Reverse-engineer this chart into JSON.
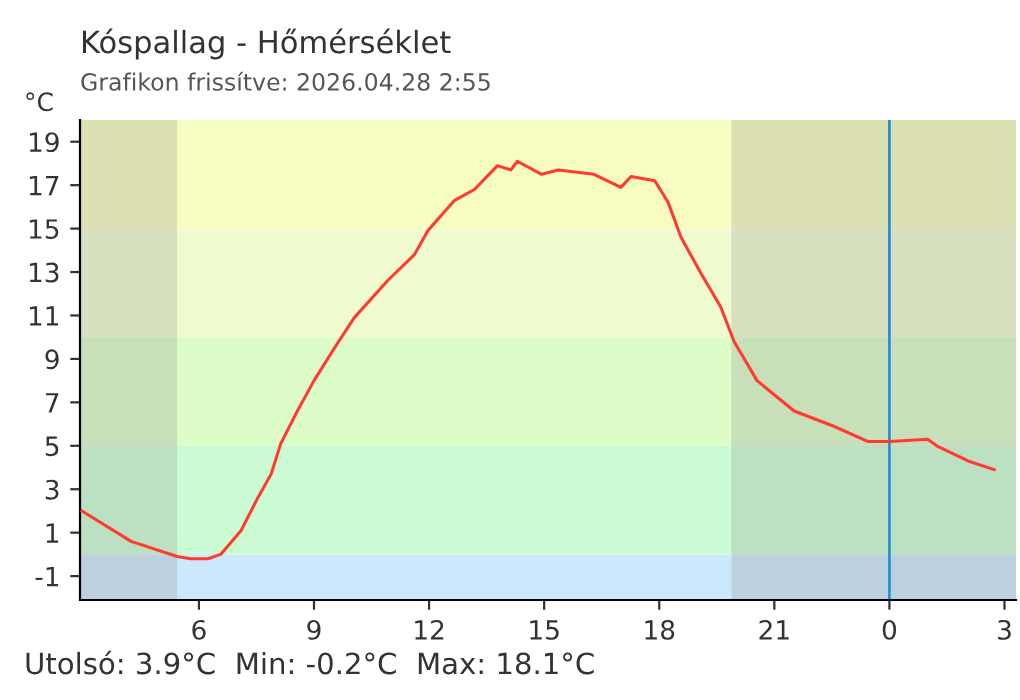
{
  "chart_data": {
    "type": "line",
    "title": "Kóspallag - Hőmérséklet",
    "subtitle": "Grafikon frissítve: 2026.04.28 2:55",
    "ylabel": "°C",
    "annotations": [
      "Utolsó: 3.9°C  Min: -0.2°C  Max: 18.1°C"
    ],
    "x": [
      "2026-04-27T02:57",
      "2026-04-27T04:14",
      "2026-04-27T05:26",
      "2026-04-27T05:47",
      "2026-04-27T06:14",
      "2026-04-27T06:34",
      "2026-04-27T07:06",
      "2026-04-27T07:32",
      "2026-04-27T07:53",
      "2026-04-27T08:08",
      "2026-04-27T08:34",
      "2026-04-27T09:00",
      "2026-04-27T09:32",
      "2026-04-27T10:03",
      "2026-04-27T10:55",
      "2026-04-27T11:37",
      "2026-04-27T11:58",
      "2026-04-27T12:40",
      "2026-04-27T13:11",
      "2026-04-27T13:47",
      "2026-04-27T14:08",
      "2026-04-27T14:18",
      "2026-04-27T14:56",
      "2026-04-27T15:22",
      "2026-04-27T16:18",
      "2026-04-27T17:00",
      "2026-04-27T17:16",
      "2026-04-27T17:53",
      "2026-04-27T18:14",
      "2026-04-27T18:34",
      "2026-04-27T19:06",
      "2026-04-27T19:36",
      "2026-04-27T19:57",
      "2026-04-27T20:33",
      "2026-04-27T21:31",
      "2026-04-27T22:33",
      "2026-04-27T23:26",
      "2026-04-28T00:00",
      "2026-04-28T01:00",
      "2026-04-28T01:14",
      "2026-04-28T02:03",
      "2026-04-28T02:44"
    ],
    "series": [
      {
        "color": "#ff3b30",
        "values": [
          2.0,
          0.6,
          -0.1,
          -0.2,
          -0.2,
          0.0,
          1.1,
          2.6,
          3.7,
          5.1,
          6.6,
          8.0,
          9.5,
          10.9,
          12.6,
          13.8,
          14.9,
          16.3,
          16.8,
          17.9,
          17.7,
          18.1,
          17.5,
          17.7,
          17.5,
          16.9,
          17.4,
          17.2,
          16.2,
          14.6,
          12.9,
          11.4,
          9.8,
          8.0,
          6.6,
          5.9,
          5.2,
          5.2,
          5.3,
          5.0,
          4.3,
          3.9
        ]
      }
    ],
    "xlim": [
      "2026-04-27T02:54",
      "2026-04-28T03:18"
    ],
    "ylim": [
      -2.1,
      20
    ],
    "xticks": [
      {
        "value": "2026-04-27T06:00",
        "label": "6"
      },
      {
        "value": "2026-04-27T09:00",
        "label": "9"
      },
      {
        "value": "2026-04-27T12:00",
        "label": "12"
      },
      {
        "value": "2026-04-27T15:00",
        "label": "15"
      },
      {
        "value": "2026-04-27T18:00",
        "label": "18"
      },
      {
        "value": "2026-04-27T21:00",
        "label": "21"
      },
      {
        "value": "2026-04-28T00:00",
        "label": "0"
      },
      {
        "value": "2026-04-28T03:00",
        "label": "3"
      }
    ],
    "yticks": [
      -1,
      1,
      3,
      5,
      7,
      9,
      11,
      13,
      15,
      17,
      19
    ],
    "grid": false,
    "legend": false,
    "marker": "none",
    "line_style": "solid",
    "bands": [
      {
        "axis": "y",
        "from": -2.1,
        "to": 0,
        "color": "#cce8fc"
      },
      {
        "axis": "y",
        "from": 0,
        "to": 5,
        "color": "#ccfcd4"
      },
      {
        "axis": "y",
        "from": 5,
        "to": 10,
        "color": "#dcfcc8"
      },
      {
        "axis": "y",
        "from": 10,
        "to": 15,
        "color": "#f0fcd0"
      },
      {
        "axis": "y",
        "from": 15,
        "to": 20,
        "color": "#f7fcc0"
      },
      {
        "axis": "x",
        "from": "2026-04-27T02:54",
        "to": "2026-04-27T05:26",
        "color": "#8a8a8a"
      },
      {
        "axis": "x",
        "from": "2026-04-27T19:53",
        "to": "2026-04-28T03:18",
        "color": "#8a8a8a"
      }
    ],
    "ref_lines": [
      {
        "axis": "x",
        "value": "2026-04-28T00:00",
        "color": "#2a8fd8"
      }
    ]
  }
}
